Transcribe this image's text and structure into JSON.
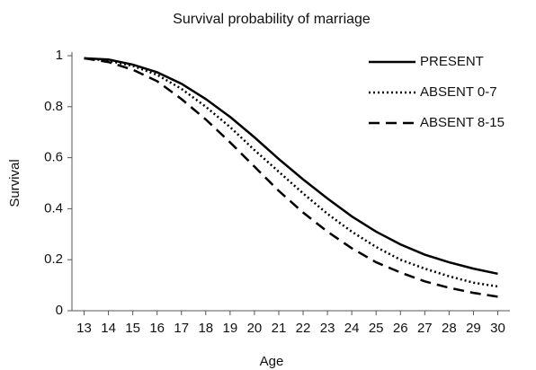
{
  "chart_data": {
    "type": "line",
    "title": "Survival probability of marriage",
    "xlabel": "Age",
    "ylabel": "Survival",
    "x": [
      13,
      14,
      15,
      16,
      17,
      18,
      19,
      20,
      21,
      22,
      23,
      24,
      25,
      26,
      27,
      28,
      29,
      30
    ],
    "series": [
      {
        "name": "PRESENT",
        "color": "#000000",
        "dash": "solid",
        "values": [
          0.99,
          0.985,
          0.965,
          0.935,
          0.89,
          0.83,
          0.76,
          0.68,
          0.595,
          0.515,
          0.44,
          0.37,
          0.31,
          0.26,
          0.22,
          0.19,
          0.165,
          0.145
        ]
      },
      {
        "name": "ABSENT 0-7",
        "color": "#000000",
        "dash": "dotted",
        "values": [
          0.99,
          0.98,
          0.96,
          0.925,
          0.87,
          0.8,
          0.72,
          0.63,
          0.545,
          0.46,
          0.38,
          0.31,
          0.25,
          0.2,
          0.165,
          0.135,
          0.11,
          0.095
        ]
      },
      {
        "name": "ABSENT 8-15",
        "color": "#000000",
        "dash": "dashed",
        "values": [
          0.99,
          0.975,
          0.945,
          0.9,
          0.83,
          0.75,
          0.66,
          0.565,
          0.47,
          0.385,
          0.31,
          0.245,
          0.19,
          0.15,
          0.115,
          0.09,
          0.07,
          0.055
        ]
      }
    ],
    "xlim": [
      12.5,
      30.5
    ],
    "xticks": [
      13,
      14,
      15,
      16,
      17,
      18,
      19,
      20,
      21,
      22,
      23,
      24,
      25,
      26,
      27,
      28,
      29,
      30
    ],
    "ylim": [
      0,
      1
    ],
    "yticks": [
      0,
      0.2,
      0.4,
      0.6,
      0.8,
      1
    ],
    "grid": false,
    "legend": "upper right"
  }
}
